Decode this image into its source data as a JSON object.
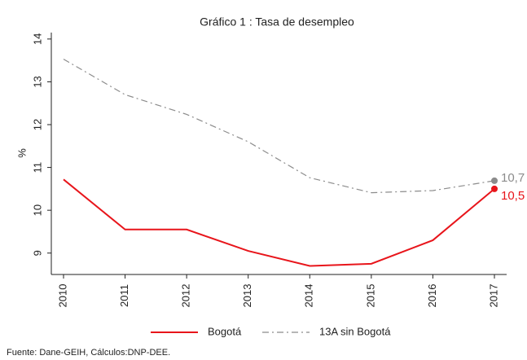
{
  "chart_data": {
    "type": "line",
    "title": "Gráfico 1 : Tasa de desempleo",
    "ylabel": "%",
    "source": "Fuente: Dane-GEIH, Cálculos:DNP-DEE.",
    "x": [
      2010,
      2011,
      2012,
      2013,
      2014,
      2015,
      2016,
      2017
    ],
    "xlim": [
      2010,
      2017
    ],
    "xticks": [
      2010,
      2011,
      2012,
      2013,
      2014,
      2015,
      2016,
      2017
    ],
    "ylim": [
      8.5,
      14.15
    ],
    "yticks": [
      9,
      10,
      11,
      12,
      13,
      14
    ],
    "legend": "bottom",
    "series": [
      {
        "name": "Bogotá",
        "color": "#e8151b",
        "style": "solid",
        "values": [
          10.72,
          9.55,
          9.55,
          9.05,
          8.7,
          8.75,
          9.3,
          10.5
        ],
        "value_labels": [
          null,
          null,
          null,
          null,
          null,
          null,
          null,
          "10,5"
        ]
      },
      {
        "name": "13A sin Bogotá",
        "color": "#8c8c8c",
        "style": "dashdot",
        "values": [
          13.53,
          12.7,
          12.24,
          11.6,
          10.76,
          10.41,
          10.46,
          10.69
        ],
        "value_labels": [
          null,
          null,
          null,
          null,
          null,
          null,
          null,
          "10,7"
        ]
      }
    ]
  }
}
